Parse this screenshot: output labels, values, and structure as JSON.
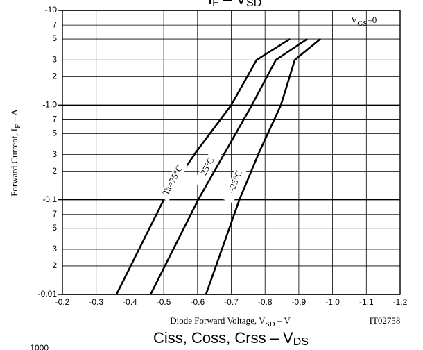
{
  "chart_data": {
    "type": "line",
    "title": {
      "text": "I",
      "sub": "F",
      "mid": " – V",
      "sub2": "SD"
    },
    "bottom_title": {
      "text": "Ciss, Coss, Crss – V",
      "sub": "DS"
    },
    "bottom_tick": "1000",
    "x_label": {
      "text": "Diode Forward Voltage, V",
      "sub": "SD",
      "after": " – V"
    },
    "y_label": {
      "text": "Forward Current, I",
      "sub": "F",
      "after": " – A"
    },
    "figure_id": "IT02758",
    "condition": {
      "text": "V",
      "sub": "GS",
      "after": "=0"
    },
    "xlim": [
      -0.2,
      -1.2
    ],
    "xticks": [
      -0.2,
      -0.3,
      -0.4,
      -0.5,
      -0.6,
      -0.7,
      -0.8,
      -0.9,
      {
        "value": -1.0,
        "label": "-1.0"
      },
      -1.1,
      -1.2
    ],
    "ylim": [
      -0.01,
      -10
    ],
    "log_y": true,
    "grid": true,
    "yticks": [
      -10,
      {
        "value": -7,
        "label": "7"
      },
      {
        "value": -5,
        "label": "5"
      },
      {
        "value": -3,
        "label": "3"
      },
      {
        "value": -2,
        "label": "2"
      },
      {
        "value": -1.0,
        "label": "-1.0"
      },
      {
        "value": -0.7,
        "label": "7"
      },
      {
        "value": -0.5,
        "label": "5"
      },
      {
        "value": -0.3,
        "label": "3"
      },
      {
        "value": -0.2,
        "label": "2"
      },
      -0.1,
      {
        "value": -0.07,
        "label": "7"
      },
      {
        "value": -0.05,
        "label": "5"
      },
      {
        "value": -0.03,
        "label": "3"
      },
      {
        "value": -0.02,
        "label": "2"
      },
      -0.01
    ],
    "series": [
      {
        "name": "Ta=75°C",
        "color": "#000000",
        "x": [
          -0.36,
          -0.5,
          -0.596,
          -0.7,
          -0.775,
          -0.874
        ],
        "values": [
          -0.01,
          -0.1,
          -0.32,
          -1.0,
          -3,
          -5
        ]
      },
      {
        "name": "25°C",
        "color": "#000000",
        "x": [
          -0.461,
          -0.602,
          -0.761,
          -0.832,
          -0.925
        ],
        "values": [
          -0.01,
          -0.1,
          -1.0,
          -3,
          -5
        ]
      },
      {
        "name": "–25°C",
        "color": "#000000",
        "x": [
          -0.625,
          -0.724,
          -0.783,
          -0.847,
          -0.888,
          -0.964
        ],
        "values": [
          -0.01,
          -0.1,
          -0.32,
          -1.0,
          -3,
          -5
        ]
      }
    ]
  }
}
